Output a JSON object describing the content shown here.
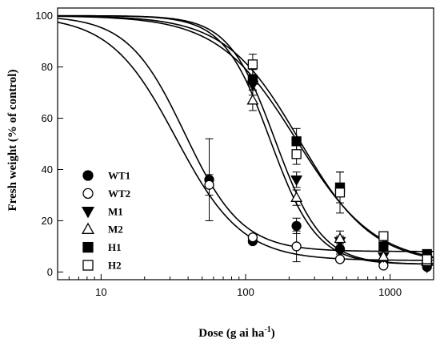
{
  "chart_data": {
    "type": "scatter",
    "xlabel": "Dose (g ai ha",
    "xlabel_sup": "-1",
    "xlabel_end": ")",
    "ylabel": "Fresh weight (% of control)",
    "x_scale": "log",
    "xlim": [
      5,
      2000
    ],
    "ylim": [
      -3,
      103
    ],
    "x_ticks": [
      10,
      100,
      1000
    ],
    "x_tick_labels": [
      "10",
      "100",
      "1000"
    ],
    "y_ticks": [
      0,
      20,
      40,
      60,
      80,
      100
    ],
    "y_tick_labels": [
      "0",
      "20",
      "40",
      "60",
      "80",
      "100"
    ],
    "grid": false,
    "legend_position": "bottom-left",
    "series": [
      {
        "name": "WT1",
        "marker": "circle-filled",
        "x": [
          56,
          112,
          225,
          450,
          900,
          1800
        ],
        "y": [
          36,
          12,
          18,
          9,
          4,
          2
        ],
        "err": [
          16,
          1,
          3,
          2,
          1,
          1
        ],
        "curve": {
          "top": 100,
          "bottom": 8,
          "ed50": 38,
          "slope": 2.2
        }
      },
      {
        "name": "WT2",
        "marker": "circle-open",
        "x": [
          56,
          112,
          225,
          450,
          900,
          1800
        ],
        "y": [
          34,
          13.5,
          10,
          5,
          2.5,
          4
        ],
        "err": [
          4,
          1,
          6,
          1,
          1,
          1
        ],
        "curve": {
          "top": 100,
          "bottom": 4.5,
          "ed50": 33,
          "slope": 1.9
        }
      },
      {
        "name": "M1",
        "marker": "triangle-down-filled",
        "x": [
          112,
          225,
          450,
          900,
          1800
        ],
        "y": [
          73,
          36,
          12,
          6,
          2
        ],
        "err": [
          4,
          3,
          2,
          1,
          1
        ],
        "curve": {
          "top": 100,
          "bottom": 3,
          "ed50": 160,
          "slope": 2.7
        }
      },
      {
        "name": "M2",
        "marker": "triangle-up-open",
        "x": [
          112,
          225,
          450,
          900,
          1800
        ],
        "y": [
          67,
          29,
          13,
          6,
          4
        ],
        "err": [
          4,
          3,
          3,
          1,
          1
        ],
        "curve": {
          "top": 100,
          "bottom": 3,
          "ed50": 148,
          "slope": 2.7
        }
      },
      {
        "name": "H1",
        "marker": "square-filled",
        "x": [
          112,
          225,
          450,
          900,
          1800
        ],
        "y": [
          75,
          51,
          33,
          10,
          7
        ],
        "err": [
          4,
          5,
          6,
          1,
          1
        ],
        "curve": {
          "top": 100,
          "bottom": 3,
          "ed50": 235,
          "slope": 1.7
        }
      },
      {
        "name": "H2",
        "marker": "square-open",
        "x": [
          112,
          225,
          450,
          900,
          1800
        ],
        "y": [
          81,
          46,
          31,
          14,
          5
        ],
        "err": [
          4,
          4,
          8,
          1,
          1
        ],
        "curve": {
          "top": 100,
          "bottom": 3,
          "ed50": 225,
          "slope": 1.6
        }
      }
    ]
  }
}
